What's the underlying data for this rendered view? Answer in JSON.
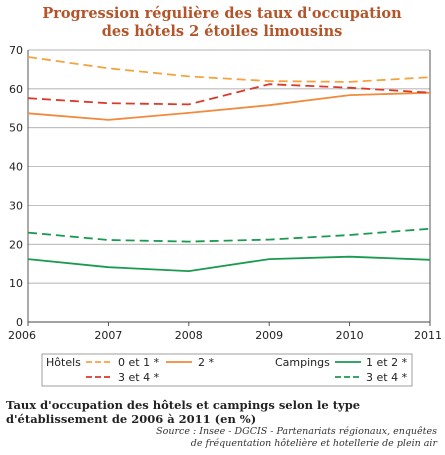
{
  "chart_data": {
    "type": "line",
    "title_lines": [
      "Progression régulière des taux d'occupation",
      "des hôtels 2 étoiles limousins"
    ],
    "x": [
      2006,
      2007,
      2008,
      2009,
      2010,
      2011
    ],
    "x_tick_labels": [
      "2006",
      "2007",
      "2008",
      "2009",
      "2010",
      "2011"
    ],
    "ylim": [
      0,
      70
    ],
    "y_ticks": [
      0,
      10,
      20,
      30,
      40,
      50,
      60,
      70
    ],
    "y_tick_labels": [
      "0",
      "10",
      "20",
      "30",
      "40",
      "50",
      "60",
      "70"
    ],
    "grid": "horizontal",
    "legend_placement": "bottom",
    "legend_groups": [
      {
        "label": "Hôtels",
        "entries": [
          "0 et 1 *",
          "2 *",
          "3 et 4 *"
        ]
      },
      {
        "label": "Campings",
        "entries": [
          "1 et 2 *",
          "3 et 4 *"
        ]
      }
    ],
    "series": [
      {
        "name": "0 et 1 *",
        "group": "Hôtels",
        "values": [
          68.2,
          65.3,
          63.2,
          62.0,
          61.8,
          63.0
        ],
        "color": "#f5a340",
        "dashed": true
      },
      {
        "name": "2 *",
        "group": "Hôtels",
        "values": [
          53.7,
          52.0,
          53.8,
          55.8,
          58.4,
          59.0
        ],
        "color": "#f08a3c",
        "dashed": false
      },
      {
        "name": "3 et 4 *",
        "group": "Hôtels",
        "values": [
          57.6,
          56.3,
          56.0,
          61.2,
          60.3,
          59.0
        ],
        "color": "#d93a2b",
        "dashed": true
      },
      {
        "name": "1 et 2 *",
        "group": "Campings",
        "values": [
          16.2,
          14.1,
          13.1,
          16.2,
          16.8,
          16.0
        ],
        "color": "#1a9a50",
        "dashed": false
      },
      {
        "name": "3 et 4 *",
        "group": "Campings",
        "values": [
          23.0,
          21.1,
          20.7,
          21.2,
          22.4,
          24.0
        ],
        "color": "#1a9a50",
        "dashed": true
      }
    ]
  },
  "caption": "Taux d'occupation des hôtels et campings selon le type d'établissement de 2006 à 2011 (en %)",
  "source_line1": "Source : Insee - DGCIS - Partenariats régionaux, enquêtes",
  "source_line2": "de fréquentation hôtelière et hotellerie de plein air"
}
